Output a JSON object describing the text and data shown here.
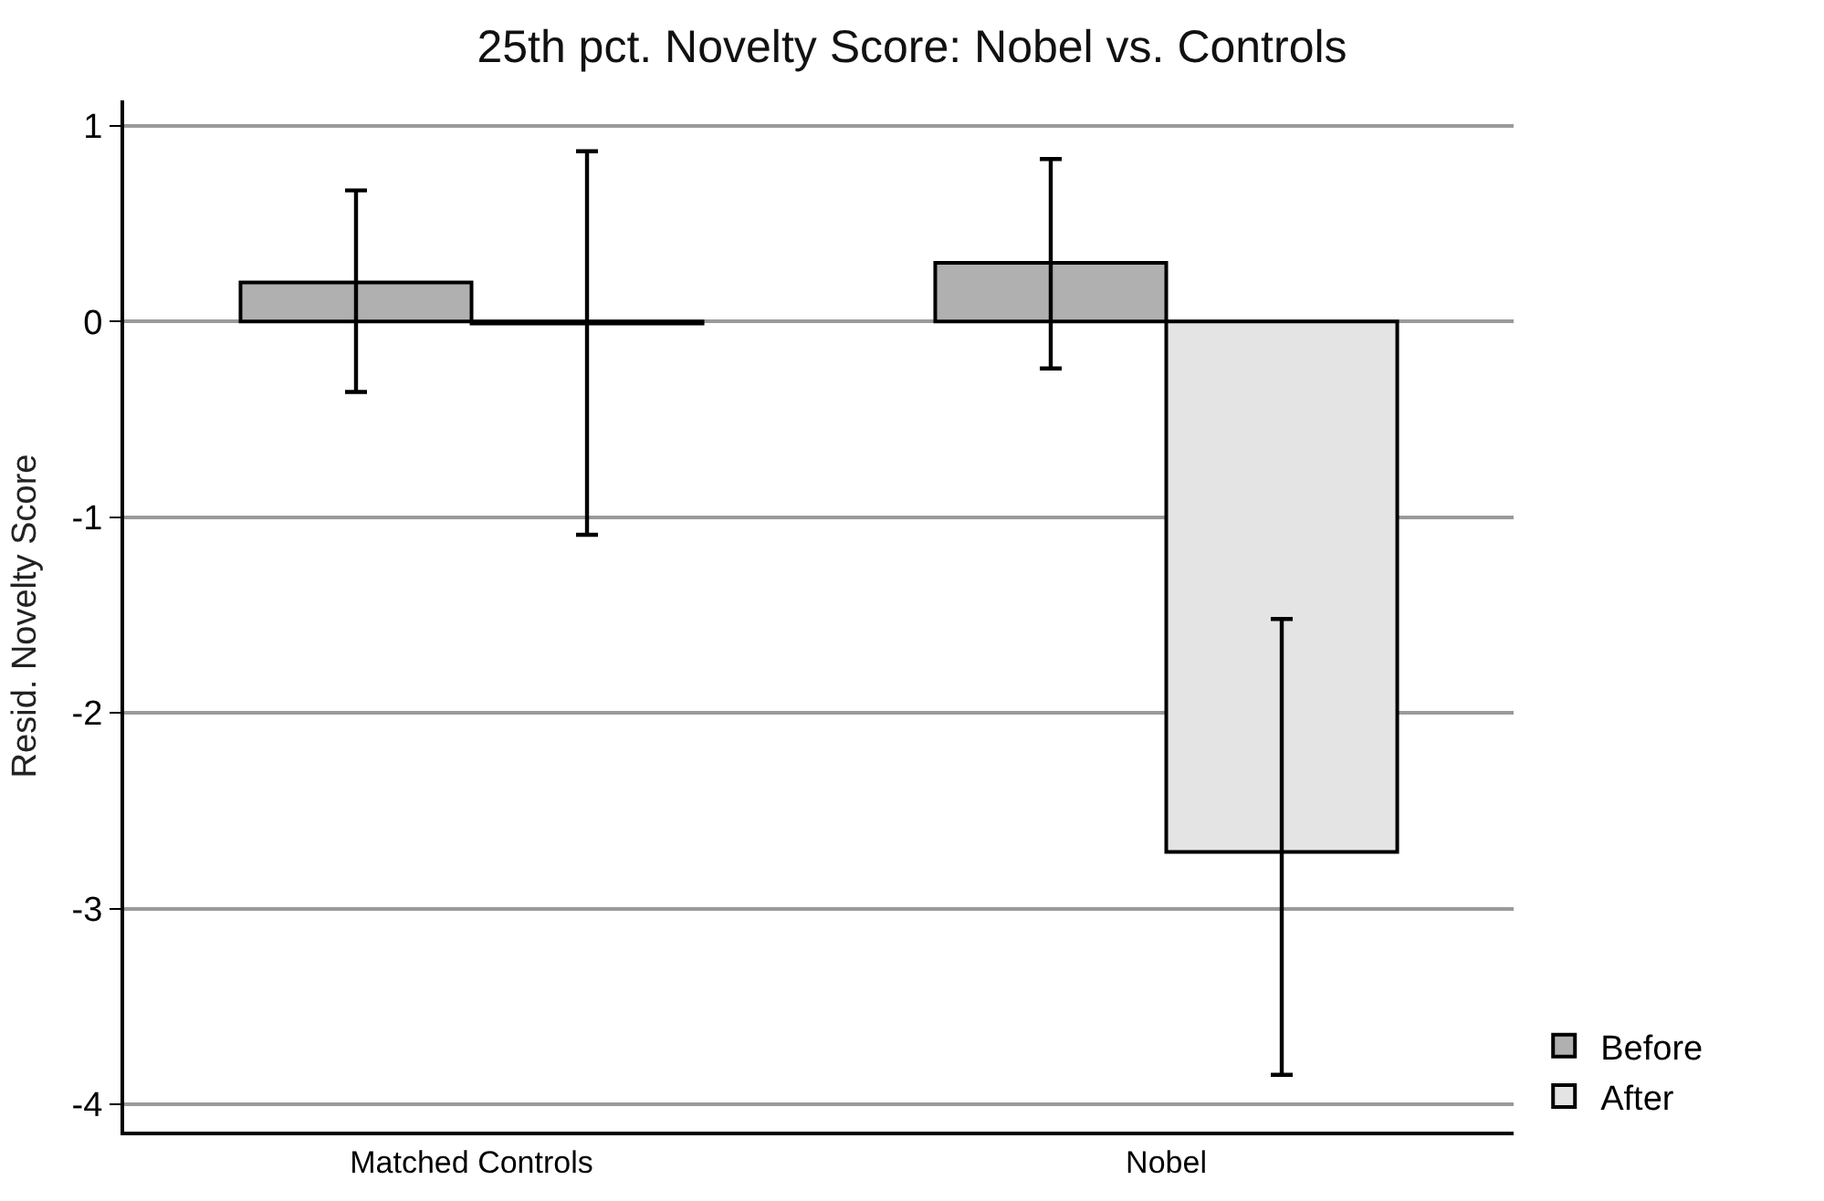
{
  "chart_data": {
    "type": "bar",
    "title": "25th pct. Novelty Score: Nobel vs. Controls",
    "ylabel": "Resid. Novelty Score",
    "categories": [
      "Matched Controls",
      "Nobel"
    ],
    "series": [
      {
        "name": "Before",
        "color": "#b0b0b0",
        "values": [
          0.2,
          0.3
        ],
        "errors": [
          [
            -0.36,
            0.67
          ],
          [
            -0.24,
            0.83
          ]
        ]
      },
      {
        "name": "After",
        "color": "#e4e4e4",
        "values": [
          -0.01,
          -2.71
        ],
        "errors": [
          [
            -1.09,
            0.87
          ],
          [
            -3.85,
            -1.52
          ]
        ]
      }
    ],
    "ylim": [
      -4.14,
      1.13
    ],
    "yticks": [
      -4,
      -3,
      -2,
      -1,
      0,
      1
    ],
    "grid": "y",
    "legend": "bottom right"
  }
}
